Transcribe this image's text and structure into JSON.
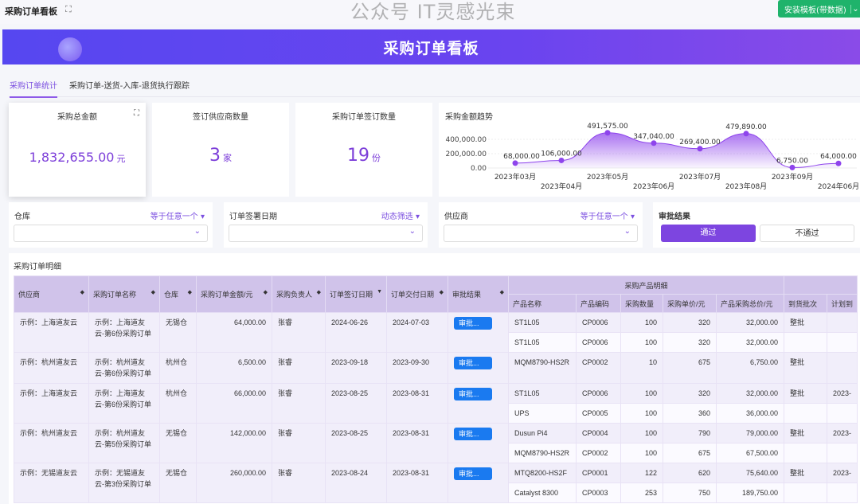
{
  "app": {
    "title": "采购订单看板",
    "install_button": "安装模板(带数据)"
  },
  "banner": {
    "title": "采购订单看板"
  },
  "tabs": [
    {
      "label": "采购订单统计",
      "active": true
    },
    {
      "label": "采购订单-送货-入库-退货执行跟踪",
      "active": false
    }
  ],
  "kpis": [
    {
      "label": "采购总金额",
      "value": "1,832,655.00",
      "unit": "元"
    },
    {
      "label": "签订供应商数量",
      "value": "3",
      "unit": "家"
    },
    {
      "label": "采购订单签订数量",
      "value": "19",
      "unit": "份"
    }
  ],
  "chart_data": {
    "type": "area",
    "title": "采购金额趋势",
    "categories": [
      "2023年03月",
      "2023年04月",
      "2023年05月",
      "2023年06月",
      "2023年07月",
      "2023年08月",
      "2023年09月",
      "2024年06月"
    ],
    "values": [
      68000,
      106000,
      491575,
      347040,
      269400,
      479890,
      6750,
      64000
    ],
    "labels": [
      "68,000.00",
      "106,000.00",
      "491,575.00",
      "347,040.00",
      "269,400.00",
      "479,890.00",
      "6,750.00",
      "64,000.00"
    ],
    "yticks": [
      "0.00",
      "200,000.00",
      "400,000.00"
    ],
    "ylim": [
      0,
      400000
    ],
    "color": "#8e44ec",
    "grid": true
  },
  "filters": [
    {
      "label": "仓库",
      "op": "等于任意一个"
    },
    {
      "label": "订单签署日期",
      "op": "动态筛选"
    },
    {
      "label": "供应商",
      "op": "等于任意一个"
    }
  ],
  "approval_filter": {
    "label": "审批结果",
    "options": [
      "通过",
      "不通过"
    ]
  },
  "table": {
    "title": "采购订单明细",
    "group_header": "采购产品明细",
    "columns": [
      "供应商",
      "采购订单名称",
      "仓库",
      "采购订单金额/元",
      "采购负责人",
      "订单签订日期",
      "订单交付日期",
      "审批结果"
    ],
    "sub_columns": [
      "产品名称",
      "产品编码",
      "采购数量",
      "采购单价/元",
      "产品采购总价/元",
      "到货批次",
      "计划到"
    ],
    "approve_label": "审批...",
    "orders": [
      {
        "supplier": "示例：上海道友云",
        "name": "示例：上海道友云-第6份采购订单",
        "warehouse": "无锡仓",
        "amount": "64,000.00",
        "owner": "张睿",
        "sign": "2024-06-26",
        "deliver": "2024-07-03",
        "items": [
          [
            "ST1L05",
            "CP0006",
            "100",
            "320",
            "32,000.00",
            "整批",
            ""
          ],
          [
            "ST1L05",
            "CP0006",
            "100",
            "320",
            "32,000.00",
            "",
            ""
          ]
        ]
      },
      {
        "supplier": "示例：杭州道友云",
        "name": "示例：杭州道友云-第6份采购订单",
        "warehouse": "杭州仓",
        "amount": "6,500.00",
        "owner": "张睿",
        "sign": "2023-09-18",
        "deliver": "2023-09-30",
        "items": [
          [
            "MQM8790-HS2R",
            "CP0002",
            "10",
            "675",
            "6,750.00",
            "整批",
            ""
          ]
        ]
      },
      {
        "supplier": "示例：上海道友云",
        "name": "示例：上海道友云-第6份采购订单",
        "warehouse": "杭州仓",
        "amount": "66,000.00",
        "owner": "张睿",
        "sign": "2023-08-25",
        "deliver": "2023-08-31",
        "items": [
          [
            "ST1L05",
            "CP0006",
            "100",
            "320",
            "32,000.00",
            "整批",
            "2023-"
          ],
          [
            "UPS",
            "CP0005",
            "100",
            "360",
            "36,000.00",
            "",
            ""
          ]
        ]
      },
      {
        "supplier": "示例：杭州道友云",
        "name": "示例：杭州道友云-第5份采购订单",
        "warehouse": "无锡仓",
        "amount": "142,000.00",
        "owner": "张睿",
        "sign": "2023-08-25",
        "deliver": "2023-08-31",
        "items": [
          [
            "Dusun Pi4",
            "CP0004",
            "100",
            "790",
            "79,000.00",
            "整批",
            "2023-"
          ],
          [
            "MQM8790-HS2R",
            "CP0002",
            "100",
            "675",
            "67,500.00",
            "",
            ""
          ]
        ]
      },
      {
        "supplier": "示例：无锡道友云",
        "name": "示例：无锡道友云-第3份采购订单",
        "warehouse": "无锡仓",
        "amount": "260,000.00",
        "owner": "张睿",
        "sign": "2023-08-24",
        "deliver": "2023-08-31",
        "items": [
          [
            "MTQ8200-HS2F",
            "CP0001",
            "122",
            "620",
            "75,640.00",
            "整批",
            "2023-"
          ],
          [
            "Catalyst 8300",
            "CP0003",
            "253",
            "750",
            "189,750.00",
            "",
            ""
          ]
        ]
      }
    ]
  },
  "watermark": "公众号 IT灵感光束"
}
